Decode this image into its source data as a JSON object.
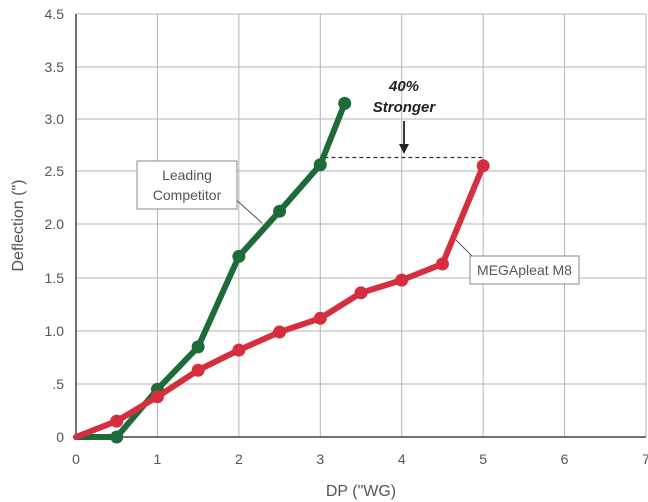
{
  "chart_data": {
    "type": "line",
    "title": "",
    "xlabel": "DP (\"WG)",
    "ylabel": "Deflection (\")",
    "xlim": [
      0,
      7
    ],
    "ylim": [
      0,
      4.5
    ],
    "x_ticks": [
      "0",
      "1",
      "2",
      "3",
      "4",
      "5",
      "6",
      "7"
    ],
    "y_ticks": [
      "0",
      ".5",
      "1.0",
      "1.5",
      "2.0",
      "2.5",
      "3.0",
      "3.5",
      "4.5"
    ],
    "grid": true,
    "series": [
      {
        "name": "Leading Competitor",
        "color": "#1e6b3a",
        "x": [
          0,
          0.5,
          1,
          1.5,
          2,
          2.5,
          3,
          3.3
        ],
        "y": [
          0,
          0,
          0.45,
          0.85,
          1.7,
          2.12,
          2.56,
          3.15
        ]
      },
      {
        "name": "MEGApleat M8",
        "color": "#d62d3f",
        "x": [
          0,
          0.5,
          1,
          1.5,
          2,
          2.5,
          3,
          3.5,
          4,
          4.5,
          5
        ],
        "y": [
          0,
          0.15,
          0.38,
          0.63,
          0.82,
          0.99,
          1.12,
          1.36,
          1.48,
          1.63,
          2.55
        ]
      }
    ],
    "annotations": {
      "leading_label": [
        "Leading",
        "Competitor"
      ],
      "mega_label": "MEGApleat M8",
      "note_lines": [
        "40%",
        "Stronger"
      ],
      "reference_y": 2.63,
      "reference_x": [
        3.05,
        5
      ]
    }
  }
}
